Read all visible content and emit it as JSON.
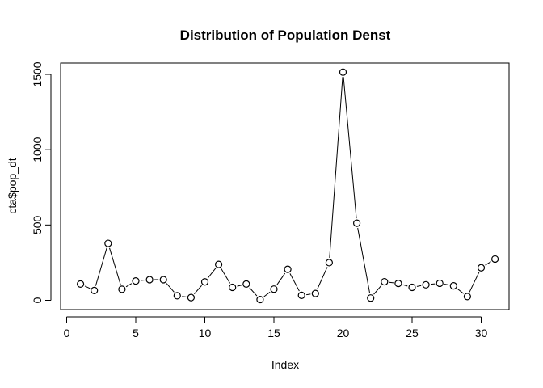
{
  "chart_data": {
    "type": "line",
    "title": "Distribution of Population Denst",
    "xlabel": "Index",
    "ylabel": "cta$pop_dt",
    "xlim": [
      0,
      32
    ],
    "ylim": [
      0,
      1550
    ],
    "x_ticks": [
      0,
      5,
      10,
      15,
      20,
      25,
      30
    ],
    "y_ticks": [
      0,
      500,
      1000,
      1500
    ],
    "grid": false,
    "legend": "none",
    "marker": "open-circle",
    "series": [
      {
        "x": [
          1,
          2,
          3,
          4,
          5,
          6,
          7,
          8,
          9,
          10,
          11,
          12,
          13,
          14,
          15,
          16,
          17,
          18,
          19,
          20,
          21,
          22,
          23,
          24,
          25,
          26,
          27,
          28,
          29,
          30,
          31
        ],
        "values": [
          108,
          65,
          378,
          73,
          128,
          137,
          137,
          30,
          18,
          122,
          238,
          86,
          108,
          5,
          74,
          206,
          33,
          45,
          250,
          1515,
          512,
          15,
          123,
          112,
          86,
          103,
          113,
          96,
          25,
          216,
          274
        ]
      }
    ]
  }
}
